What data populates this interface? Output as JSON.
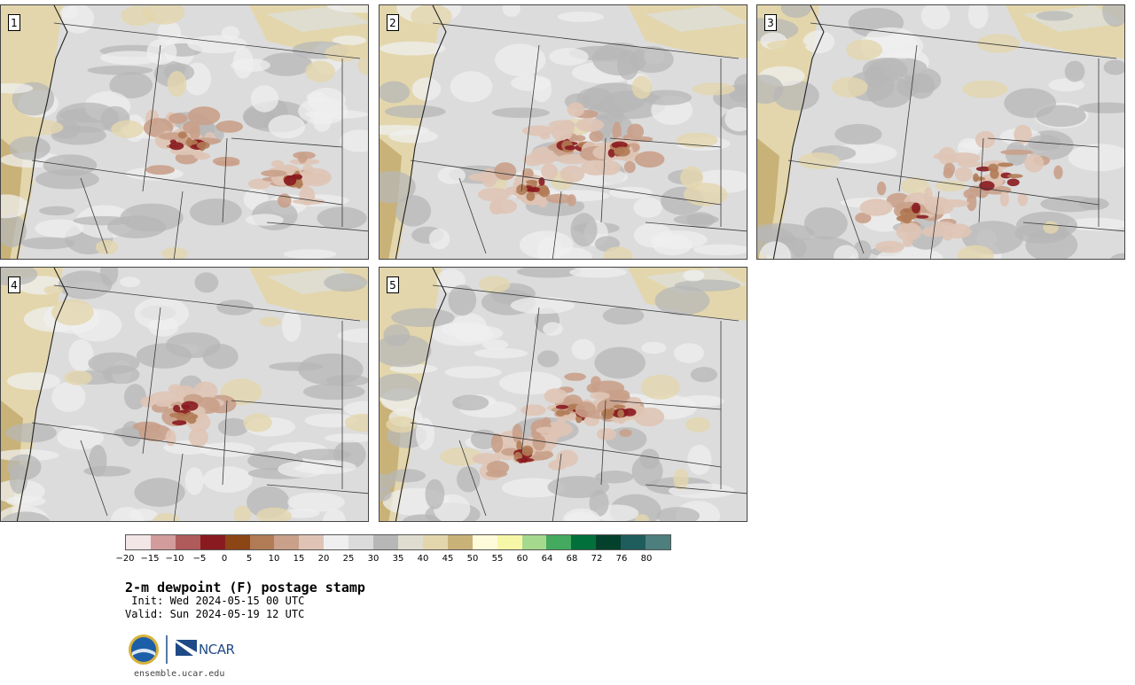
{
  "panels": [
    {
      "label": "1",
      "member": 1
    },
    {
      "label": "2",
      "member": 2
    },
    {
      "label": "3",
      "member": 3
    },
    {
      "label": "4",
      "member": 4
    },
    {
      "label": "5",
      "member": 5
    }
  ],
  "colorbar": {
    "colors": [
      "#f2e6e6",
      "#d29c9c",
      "#b05b5b",
      "#891a1f",
      "#8c4616",
      "#b17b55",
      "#c9a089",
      "#dfc4b5",
      "#efefef",
      "#dbdbdb",
      "#b7b7b7",
      "#deddd0",
      "#e3d6ac",
      "#c9b278",
      "#fffbd9",
      "#f7f7a8",
      "#a5d98e",
      "#43aa5f",
      "#02703b",
      "#04412c",
      "#1f5d5c",
      "#4e7f7f"
    ],
    "tick_labels": [
      "−20",
      "−15",
      "−10",
      "−5",
      "0",
      "5",
      "10",
      "15",
      "20",
      "25",
      "30",
      "35",
      "40",
      "45",
      "50",
      "55",
      "60",
      "64",
      "68",
      "72",
      "76",
      "80"
    ]
  },
  "title": "2-m dewpoint (F) postage stamp",
  "init": " Init: Wed 2024-05-15 00 UTC",
  "valid": "Valid: Sun 2024-05-19 12 UTC",
  "logos": {
    "nsf": "NSF",
    "ncar": "NCAR"
  },
  "site": "ensemble.ucar.edu"
}
